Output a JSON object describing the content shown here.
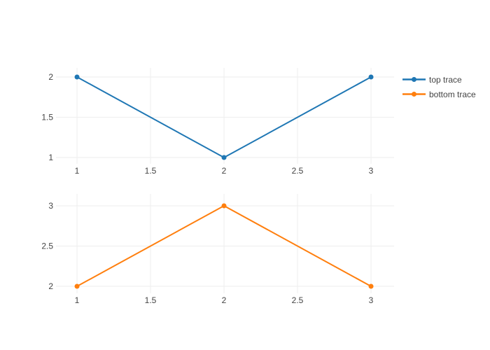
{
  "figure": {
    "background": "#ffffff",
    "grid_color": "#eeeeee",
    "tick_font_color": "#444444"
  },
  "legend": {
    "items": [
      {
        "label": "top trace",
        "color": "#1f77b4"
      },
      {
        "label": "bottom trace",
        "color": "#ff7f0e"
      }
    ]
  },
  "chart_data": [
    {
      "type": "line",
      "name": "top trace",
      "color": "#1f77b4",
      "x": [
        1,
        2,
        3
      ],
      "y": [
        2,
        1,
        2
      ],
      "xlim": [
        0.857,
        3.157
      ],
      "ylim": [
        0.922,
        2.113
      ],
      "xticks": [
        1,
        1.5,
        2,
        2.5,
        3
      ],
      "xtick_labels": [
        "1",
        "1.5",
        "2",
        "2.5",
        "3"
      ],
      "yticks": [
        1,
        1.5,
        2
      ],
      "ytick_labels": [
        "1",
        "1.5",
        "2"
      ],
      "grid": true,
      "title": "",
      "xlabel": "",
      "ylabel": ""
    },
    {
      "type": "line",
      "name": "bottom trace",
      "color": "#ff7f0e",
      "x": [
        1,
        2,
        3
      ],
      "y": [
        2,
        3,
        2
      ],
      "xlim": [
        0.857,
        3.157
      ],
      "ylim": [
        1.913,
        3.148
      ],
      "xticks": [
        1,
        1.5,
        2,
        2.5,
        3
      ],
      "xtick_labels": [
        "1",
        "1.5",
        "2",
        "2.5",
        "3"
      ],
      "yticks": [
        2,
        2.5,
        3
      ],
      "ytick_labels": [
        "2",
        "2.5",
        "3"
      ],
      "grid": true,
      "title": "",
      "xlabel": "",
      "ylabel": ""
    }
  ]
}
